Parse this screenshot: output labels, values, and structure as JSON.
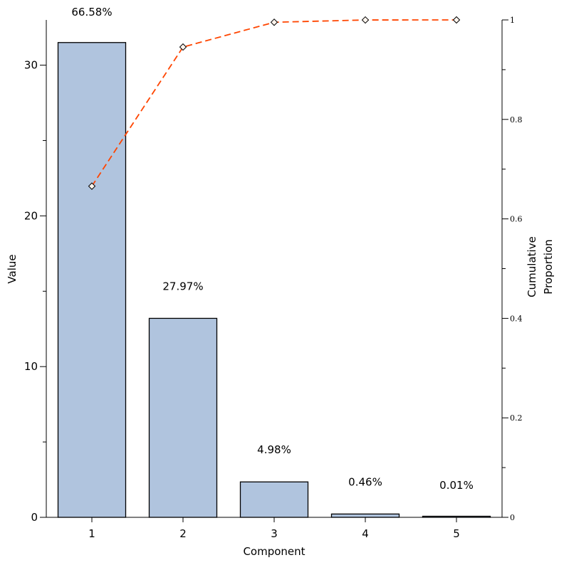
{
  "chart_data": {
    "type": "bar",
    "categories": [
      "1",
      "2",
      "3",
      "4",
      "5"
    ],
    "values": [
      31.5,
      13.2,
      2.35,
      0.22,
      0.005
    ],
    "bar_labels": [
      "66.58%",
      "27.97%",
      "4.98%",
      "0.46%",
      "0.01%"
    ],
    "cumulative": {
      "type": "line",
      "values": [
        0.6658,
        0.9455,
        0.9953,
        0.9999,
        1.0
      ],
      "color": "#ff4500"
    },
    "xlabel": "Component",
    "ylabel": "Value",
    "y2label": [
      "Cumulative",
      "Proportion"
    ],
    "ylim": [
      0,
      33
    ],
    "y2lim": [
      0,
      1
    ],
    "yticks": [
      0,
      10,
      20,
      30
    ],
    "y2ticks": [
      0,
      0.2,
      0.4,
      0.6,
      0.8,
      1
    ],
    "y2ticklabels": [
      "0",
      "0.2",
      "0.4",
      "0.6",
      "0.8",
      "1"
    ],
    "bar_color": "#b0c4de",
    "bar_edge_color": "#000000",
    "grid": false
  }
}
